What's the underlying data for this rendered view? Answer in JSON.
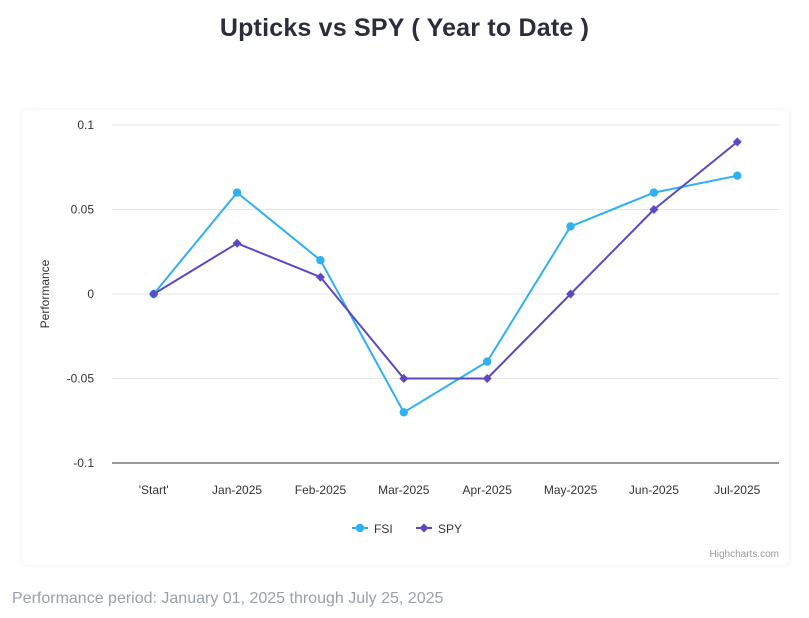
{
  "page": {
    "title": "Upticks vs SPY ( Year to Date )",
    "footnote": "Performance period: January 01, 2025 through July 25, 2025"
  },
  "chart_data": {
    "type": "line",
    "title": "Upticks vs SPY ( Year to Date )",
    "xlabel": "",
    "ylabel": "Performance",
    "categories": [
      "'Start'",
      "Jan-2025",
      "Feb-2025",
      "Mar-2025",
      "Apr-2025",
      "May-2025",
      "Jun-2025",
      "Jul-2025"
    ],
    "ylim": [
      -0.1,
      0.1
    ],
    "yticks": [
      0.1,
      0.05,
      0,
      -0.05,
      -0.1
    ],
    "ytick_labels": [
      "0.1",
      "0.05",
      "0",
      "-0.05",
      "-0.1"
    ],
    "grid": true,
    "legend_position": "bottom-center",
    "credits": "Highcharts.com",
    "series": [
      {
        "name": "FSI",
        "color": "#2fb0f0",
        "marker": "circle",
        "values": [
          0,
          0.06,
          0.02,
          -0.07,
          -0.04,
          0.04,
          0.06,
          0.07
        ]
      },
      {
        "name": "SPY",
        "color": "#5b49c2",
        "marker": "diamond",
        "values": [
          0,
          0.03,
          0.01,
          -0.05,
          -0.05,
          0,
          0.05,
          0.09
        ]
      }
    ]
  }
}
